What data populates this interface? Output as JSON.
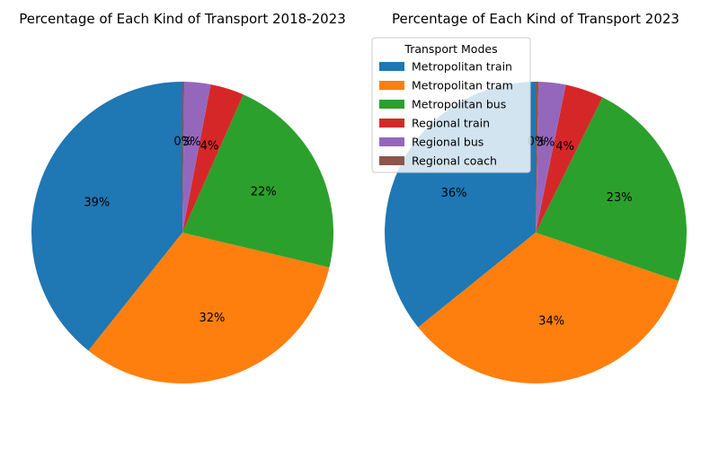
{
  "chart_data": [
    {
      "type": "pie",
      "title": "Percentage of Each Kind of Transport 2018-2023",
      "categories": [
        "Metropolitan train",
        "Metropolitan tram",
        "Metropolitan bus",
        "Regional train",
        "Regional bus",
        "Regional coach"
      ],
      "values": [
        39.3,
        32.0,
        22.1,
        3.6,
        2.8,
        0.2
      ],
      "labels": [
        "39%",
        "32%",
        "22%",
        "4%",
        "3%",
        "0%"
      ],
      "colors": [
        "#1f77b4",
        "#ff7f0e",
        "#2ca02c",
        "#d62728",
        "#9467bd",
        "#8c564b"
      ],
      "start_angle": 90,
      "direction": "counterclockwise"
    },
    {
      "type": "pie",
      "title": "Percentage of Each Kind of Transport 2023",
      "categories": [
        "Metropolitan train",
        "Metropolitan tram",
        "Metropolitan bus",
        "Regional train",
        "Regional bus",
        "Regional coach"
      ],
      "values": [
        35.8,
        34.0,
        22.9,
        4.1,
        2.9,
        0.3
      ],
      "labels": [
        "36%",
        "34%",
        "23%",
        "4%",
        "3%",
        "0%"
      ],
      "colors": [
        "#1f77b4",
        "#ff7f0e",
        "#2ca02c",
        "#d62728",
        "#9467bd",
        "#8c564b"
      ],
      "start_angle": 90,
      "direction": "counterclockwise"
    }
  ],
  "legend": {
    "title": "Transport Modes",
    "placement": "upper-left of right pie",
    "entries": [
      "Metropolitan train",
      "Metropolitan tram",
      "Metropolitan bus",
      "Regional train",
      "Regional bus",
      "Regional coach"
    ]
  }
}
